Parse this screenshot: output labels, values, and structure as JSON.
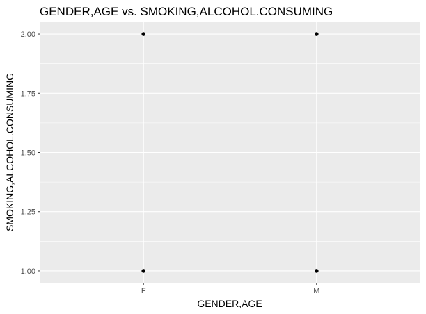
{
  "chart_data": {
    "type": "scatter",
    "title": "GENDER,AGE vs. SMOKING,ALCOHOL.CONSUMING",
    "xlabel": "GENDER,AGE",
    "ylabel": "SMOKING,ALCOHOL.CONSUMING",
    "categories": [
      "F",
      "M"
    ],
    "y_ticks": [
      "1.00",
      "1.25",
      "1.50",
      "1.75",
      "2.00"
    ],
    "ylim": [
      0.95,
      2.05
    ],
    "grid": true,
    "points": [
      {
        "x": "F",
        "y": 2.0
      },
      {
        "x": "F",
        "y": 1.0
      },
      {
        "x": "M",
        "y": 2.0
      },
      {
        "x": "M",
        "y": 1.0
      }
    ],
    "colors": {
      "panel": "#ebebeb",
      "grid_major": "#ffffff",
      "point": "#000000",
      "tick": "#333333"
    }
  }
}
